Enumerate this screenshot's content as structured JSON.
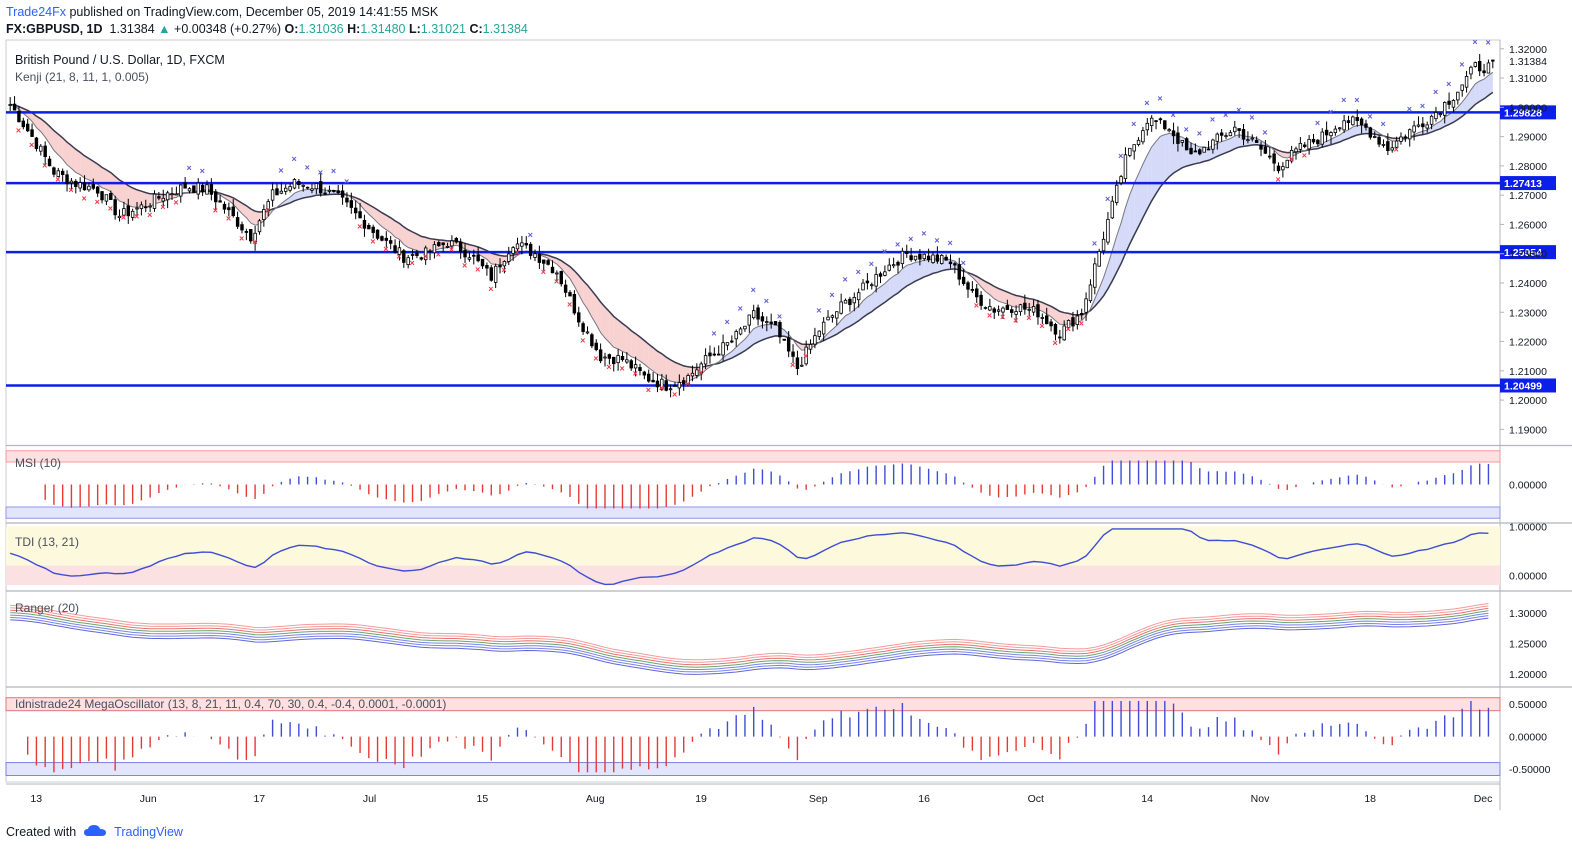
{
  "header": {
    "publisher": "Trade24Fx",
    "published_text": "published on TradingView.com, December 05, 2019 14:41:55 MSK",
    "symbol": "FX:GBPUSD, 1D",
    "last": "1.31384",
    "change_arrow": "▲",
    "change": "+0.00348 (+0.27%)",
    "o_label": "O:",
    "o_value": "1.31036",
    "h_label": "H:",
    "h_value": "1.31480",
    "l_label": "L:",
    "l_value": "1.31021",
    "c_label": "C:",
    "c_value": "1.31384"
  },
  "main_pane": {
    "title": "British Pound / U.S. Dollar, 1D, FXCM",
    "indicator": "Kenji (21, 8, 11, 1, 0.005)"
  },
  "pane_labels": {
    "msi": "MSI (10)",
    "tdi": "TDI (13, 21)",
    "ranger": "Ranger (20)",
    "osc": "Idnistrade24 MegaOscillator (13, 8, 21, 11, 0.4, 70, 30, 0.4, -0.4, 0.0001, -0.0001)"
  },
  "footer": {
    "created_with": "Created with",
    "brand": "TradingView"
  },
  "colors": {
    "bull": "#ffffff",
    "bear": "#000000",
    "level": "#0b1fe8",
    "sell": "#f23645",
    "buy": "#5b5bd6",
    "bull_fill": "#c9d1f5",
    "bear_fill": "#f6c5c5"
  },
  "chart_data": {
    "type": "candlestick",
    "symbol": "GBPUSD",
    "timeframe": "1D",
    "x_tick_labels": [
      "13",
      "Jun",
      "17",
      "Jul",
      "15",
      "Aug",
      "19",
      "Sep",
      "16",
      "Oct",
      "14",
      "Nov",
      "18",
      "Dec"
    ],
    "y_tick_labels": [
      "1.19000",
      "1.20000",
      "1.21000",
      "1.22000",
      "1.23000",
      "1.24000",
      "1.25000",
      "1.26000",
      "1.27000",
      "1.28000",
      "1.29000",
      "1.30000",
      "1.31000",
      "1.32000"
    ],
    "ylim": [
      1.185,
      1.323
    ],
    "last_price_label": "1.31384",
    "horizontal_levels": [
      1.29828,
      1.27413,
      1.25054,
      1.20499
    ],
    "close_path": [
      [
        0,
        1.301
      ],
      [
        5,
        1.29
      ],
      [
        10,
        1.278
      ],
      [
        15,
        1.274
      ],
      [
        20,
        1.272
      ],
      [
        25,
        1.263
      ],
      [
        30,
        1.266
      ],
      [
        35,
        1.27
      ],
      [
        40,
        1.273
      ],
      [
        45,
        1.272
      ],
      [
        50,
        1.264
      ],
      [
        55,
        1.256
      ],
      [
        60,
        1.27
      ],
      [
        65,
        1.274
      ],
      [
        70,
        1.273
      ],
      [
        75,
        1.269
      ],
      [
        80,
        1.262
      ],
      [
        85,
        1.255
      ],
      [
        90,
        1.249
      ],
      [
        95,
        1.25
      ],
      [
        100,
        1.254
      ],
      [
        105,
        1.25
      ],
      [
        110,
        1.242
      ],
      [
        115,
        1.254
      ],
      [
        120,
        1.25
      ],
      [
        125,
        1.244
      ],
      [
        130,
        1.228
      ],
      [
        135,
        1.215
      ],
      [
        140,
        1.214
      ],
      [
        145,
        1.208
      ],
      [
        150,
        1.205
      ],
      [
        155,
        1.208
      ],
      [
        160,
        1.215
      ],
      [
        165,
        1.22
      ],
      [
        170,
        1.229
      ],
      [
        175,
        1.224
      ],
      [
        180,
        1.211
      ],
      [
        185,
        1.224
      ],
      [
        190,
        1.232
      ],
      [
        195,
        1.238
      ],
      [
        200,
        1.245
      ],
      [
        205,
        1.25
      ],
      [
        210,
        1.249
      ],
      [
        215,
        1.247
      ],
      [
        220,
        1.236
      ],
      [
        225,
        1.231
      ],
      [
        230,
        1.232
      ],
      [
        235,
        1.23
      ],
      [
        240,
        1.223
      ],
      [
        245,
        1.23
      ],
      [
        250,
        1.256
      ],
      [
        255,
        1.282
      ],
      [
        260,
        1.296
      ],
      [
        265,
        1.293
      ],
      [
        270,
        1.283
      ],
      [
        275,
        1.288
      ],
      [
        280,
        1.293
      ],
      [
        285,
        1.287
      ],
      [
        290,
        1.28
      ],
      [
        295,
        1.286
      ],
      [
        300,
        1.29
      ],
      [
        305,
        1.296
      ],
      [
        310,
        1.293
      ],
      [
        315,
        1.286
      ],
      [
        320,
        1.292
      ],
      [
        325,
        1.297
      ],
      [
        330,
        1.304
      ],
      [
        335,
        1.3138
      ]
    ],
    "pane_ylims": {
      "msi": [
        -0.05,
        0.05
      ],
      "tdi": [
        -0.3,
        1.05
      ],
      "ranger": [
        1.18,
        1.335
      ],
      "oscillator": [
        -0.7,
        0.75
      ]
    },
    "pane_y_tick_labels": {
      "msi": [
        "0.00000"
      ],
      "tdi": [
        "0.00000",
        "1.00000"
      ],
      "ranger": [
        "1.20000",
        "1.25000",
        "1.30000"
      ],
      "oscillator": [
        "-0.50000",
        "0.00000",
        "0.50000"
      ]
    }
  }
}
